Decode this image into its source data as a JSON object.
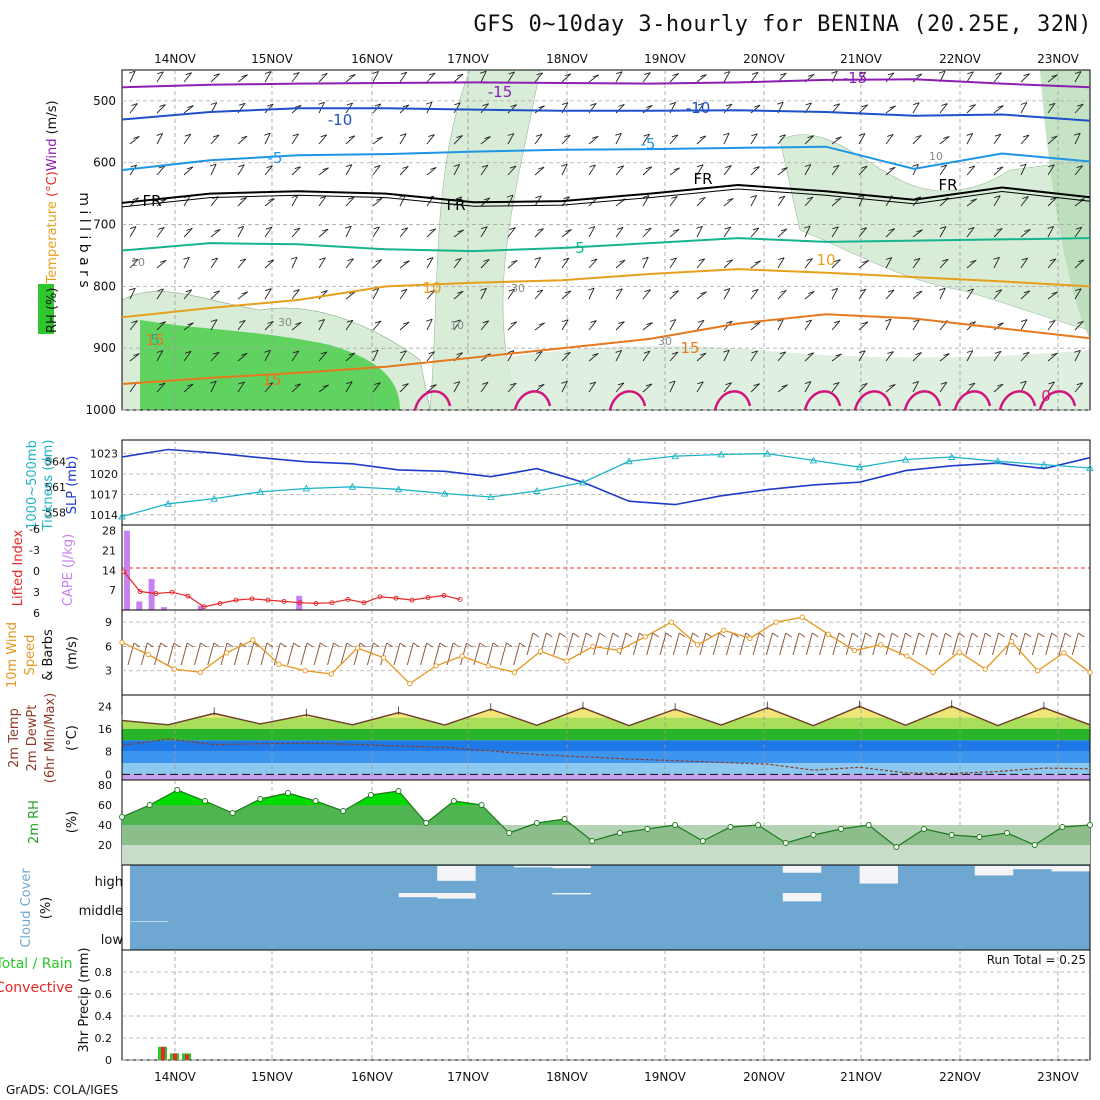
{
  "header": {
    "title": "GFS 0~10day 3-hourly for BENINA (20.25E, 32N)"
  },
  "footer": {
    "credit": "GrADS: COLA/IGES"
  },
  "colors": {
    "rh_fill": "#2ec82e",
    "rh_light": "#d8ecd8",
    "temp_violet": "#8c1eb4",
    "temp_blue": "#1e50c8",
    "temp_cyan": "#1e96e6",
    "freezing": "#000000",
    "temp_teal": "#14b48c",
    "temp_gold": "#e6a01e",
    "temp_orange": "#e6781e",
    "temp_magenta": "#d2147f",
    "slp": "#1e3cc8",
    "thickness": "#1eb4c8",
    "cape": "#c882f0",
    "lifted": "#e62828",
    "wind": "#e6961e",
    "barb": "#8c5a3c",
    "cloud": "#6ea8d2",
    "cloud_clear": "#f4f4f8",
    "precip_total": "#28c828",
    "precip_conv": "#e62828"
  },
  "chart_data": [
    {
      "type": "contour",
      "panel": "upper_air",
      "y_axis_label": "m i l l i b a r s",
      "legend_labels": [
        "RH (%)",
        "Temperature",
        "(°C)",
        "Wind",
        "(m/s)"
      ],
      "ylim": [
        1000,
        450
      ],
      "yticks": [
        500,
        600,
        700,
        800,
        900,
        1000
      ],
      "x_labels": [
        "14NOV",
        "15NOV",
        "16NOV",
        "17NOV",
        "18NOV",
        "19NOV",
        "20NOV",
        "21NOV",
        "22NOV",
        "23NOV"
      ],
      "isotherms": [
        {
          "label": "-15",
          "color_key": "temp_violet",
          "mb": [
            478,
            474,
            472,
            471,
            470,
            471,
            472,
            470,
            466,
            465,
            472,
            478
          ]
        },
        {
          "label": "-10",
          "color_key": "temp_blue",
          "mb": [
            530,
            518,
            512,
            512,
            514,
            516,
            516,
            515,
            518,
            524,
            522,
            532
          ]
        },
        {
          "label": "-5",
          "color_key": "temp_cyan",
          "mb": [
            612,
            596,
            588,
            586,
            582,
            579,
            578,
            576,
            574,
            610,
            585,
            598
          ]
        },
        {
          "label": "FR",
          "color_key": "freezing",
          "mb": [
            665,
            650,
            646,
            650,
            664,
            662,
            650,
            636,
            646,
            660,
            640,
            656
          ]
        },
        {
          "label": "5",
          "color_key": "temp_teal",
          "mb": [
            742,
            730,
            732,
            740,
            743,
            738,
            730,
            722,
            728,
            726,
            724,
            722
          ]
        },
        {
          "label": "10",
          "color_key": "temp_gold",
          "mb": [
            850,
            835,
            822,
            800,
            794,
            790,
            780,
            772,
            778,
            785,
            792,
            800
          ]
        },
        {
          "label": "15",
          "color_key": "temp_orange",
          "mb": [
            958,
            948,
            940,
            930,
            915,
            900,
            885,
            860,
            845,
            852,
            868,
            884
          ]
        }
      ],
      "contour_labels": [
        "-15",
        "-15",
        "-10",
        "-10",
        "-5",
        "-5",
        "FR",
        "FR",
        "FR",
        "FR",
        "5",
        "5",
        "10",
        "10",
        "15",
        "15",
        "15",
        "30",
        "30",
        "30",
        "10",
        "10",
        "10",
        "0"
      ]
    },
    {
      "type": "line",
      "panel": "slp_thickness",
      "y_left_label": [
        "1000~500mb",
        "Tickness (dm)"
      ],
      "y_right_label": "SLP (mb)",
      "left_ticks": [
        558,
        561,
        564
      ],
      "right_ticks": [
        1014,
        1017,
        1020,
        1023
      ],
      "series": [
        {
          "name": "SLP",
          "unit": "mb",
          "values": [
            1022.5,
            1023.6,
            1023.1,
            1022.4,
            1021.8,
            1021.5,
            1020.6,
            1020.4,
            1019.6,
            1020.8,
            1018.8,
            1016.0,
            1015.5,
            1016.8,
            1017.7,
            1018.4,
            1018.8,
            1020.5,
            1021.2,
            1021.6,
            1020.8,
            1022.4
          ]
        },
        {
          "name": "Thickness",
          "unit": "dm",
          "values": [
            557.5,
            559.0,
            559.6,
            560.4,
            560.8,
            561.0,
            560.7,
            560.2,
            559.8,
            560.5,
            561.5,
            564.0,
            564.6,
            564.8,
            564.9,
            564.1,
            563.3,
            564.2,
            564.5,
            564.0,
            563.6,
            563.2
          ]
        }
      ]
    },
    {
      "type": "bar",
      "panel": "cape_li",
      "y_left_label": "Lifted Index",
      "y_right_label": "CAPE (J/kg)",
      "left_ticks": [
        "-6",
        "-3",
        "0",
        "3",
        "6"
      ],
      "right_ticks": [
        7,
        14,
        21,
        28
      ],
      "series": [
        {
          "name": "CAPE",
          "unit": "J/kg",
          "values": [
            28,
            3,
            11,
            1,
            0,
            0,
            1.5,
            0,
            0,
            0,
            0,
            0,
            0,
            0,
            5
          ]
        },
        {
          "name": "Lifted Index",
          "values": [
            0.5,
            3.5,
            3.8,
            3.6,
            4.2,
            5.8,
            5.3,
            4.8,
            4.6,
            4.8,
            5.0,
            5.2,
            5.3,
            5.2,
            4.7,
            5.2,
            4.3,
            4.5,
            4.8,
            4.4,
            4.1,
            4.7
          ]
        }
      ]
    },
    {
      "type": "line",
      "panel": "wind10m",
      "y_left_label": [
        "10m Wind",
        "Speed",
        "& Barbs"
      ],
      "y_right_label": "(m/s)",
      "yticks": [
        3,
        6,
        9
      ],
      "series": [
        {
          "name": "10m Wind Speed",
          "unit": "m/s",
          "values": [
            6.5,
            5.0,
            3.2,
            2.8,
            5.2,
            6.8,
            3.8,
            3.0,
            2.6,
            5.8,
            4.6,
            1.4,
            3.6,
            4.8,
            3.6,
            2.8,
            5.4,
            4.2,
            6.0,
            5.5,
            7.2,
            9.0,
            6.2,
            8.0,
            7.0,
            9.0,
            9.6,
            7.5,
            5.5,
            6.2,
            4.8,
            2.8,
            5.3,
            3.2,
            6.6,
            3.0,
            5.2,
            2.8
          ]
        }
      ]
    },
    {
      "type": "area",
      "panel": "temp2m",
      "y_left_label": [
        "2m Temp",
        "2m DewPt",
        "(6hr Min/Max)"
      ],
      "y_right_label": "(°C)",
      "yticks": [
        0,
        8,
        16,
        24
      ],
      "series": [
        {
          "name": "2m Temp",
          "unit": "°C",
          "values": [
            19,
            17.5,
            21.5,
            17.8,
            21.0,
            17.5,
            21.8,
            17.4,
            23.0,
            17.3,
            23.5,
            17.2,
            23.0,
            17.4,
            23.5,
            17.2,
            24.0,
            17.3,
            24.0,
            17.2,
            23.5,
            17.5
          ]
        },
        {
          "name": "2m DewPt",
          "unit": "°C",
          "values": [
            10.2,
            12.5,
            10.5,
            10.8,
            11.0,
            10.6,
            10.0,
            9.5,
            8.2,
            7.0,
            6.2,
            5.4,
            4.8,
            4.2,
            3.6,
            1.5,
            2.5,
            0.5,
            0.3,
            1.0,
            2.2,
            2.0
          ]
        }
      ]
    },
    {
      "type": "area",
      "panel": "rh2m",
      "y_left_label": "2m RH",
      "y_right_label": "(%)",
      "yticks": [
        20,
        40,
        60,
        80
      ],
      "series": [
        {
          "name": "2m RH",
          "unit": "%",
          "values": [
            48,
            60,
            75,
            64,
            52,
            66,
            72,
            64,
            54,
            70,
            74,
            42,
            64,
            60,
            32,
            42,
            46,
            24,
            32,
            36,
            40,
            24,
            38,
            40,
            22,
            30,
            36,
            40,
            18,
            36,
            30,
            28,
            32,
            20,
            38,
            40
          ]
        }
      ]
    },
    {
      "type": "heatmap",
      "panel": "cloud",
      "y_left_label": [
        "Cloud Cover",
        "(%)"
      ],
      "levels": [
        "high",
        "middle",
        "low"
      ],
      "series": [
        {
          "name": "high",
          "unit": "%",
          "values": [
            100,
            100,
            100,
            100,
            100,
            100,
            100,
            100,
            45,
            100,
            95,
            92,
            100,
            100,
            100,
            100,
            100,
            75,
            100,
            35,
            100,
            100,
            65,
            88,
            80
          ]
        },
        {
          "name": "middle",
          "unit": "%",
          "values": [
            100,
            100,
            100,
            100,
            100,
            100,
            100,
            85,
            80,
            100,
            100,
            95,
            100,
            100,
            100,
            100,
            100,
            70,
            100,
            100,
            100,
            100,
            100,
            100,
            100
          ]
        },
        {
          "name": "low",
          "unit": "%",
          "values": [
            98,
            100,
            100,
            100,
            100,
            100,
            100,
            100,
            100,
            100,
            100,
            100,
            100,
            100,
            100,
            100,
            100,
            100,
            100,
            100,
            100,
            100,
            100,
            100,
            100
          ]
        }
      ]
    },
    {
      "type": "bar",
      "panel": "precip",
      "y_left_label": [
        "Total / Rain",
        "Convective"
      ],
      "y_right_label": "3hr Precip (mm)",
      "yticks": [
        0,
        0.2,
        0.4,
        0.6,
        0.8
      ],
      "run_total_label": "Run Total = 0.25",
      "series": [
        {
          "name": "Total",
          "unit": "mm",
          "values": [
            0.12,
            0.06,
            0.06
          ]
        },
        {
          "name": "Convective",
          "unit": "mm",
          "values": [
            0.12,
            0.06,
            0.05
          ]
        }
      ]
    }
  ]
}
